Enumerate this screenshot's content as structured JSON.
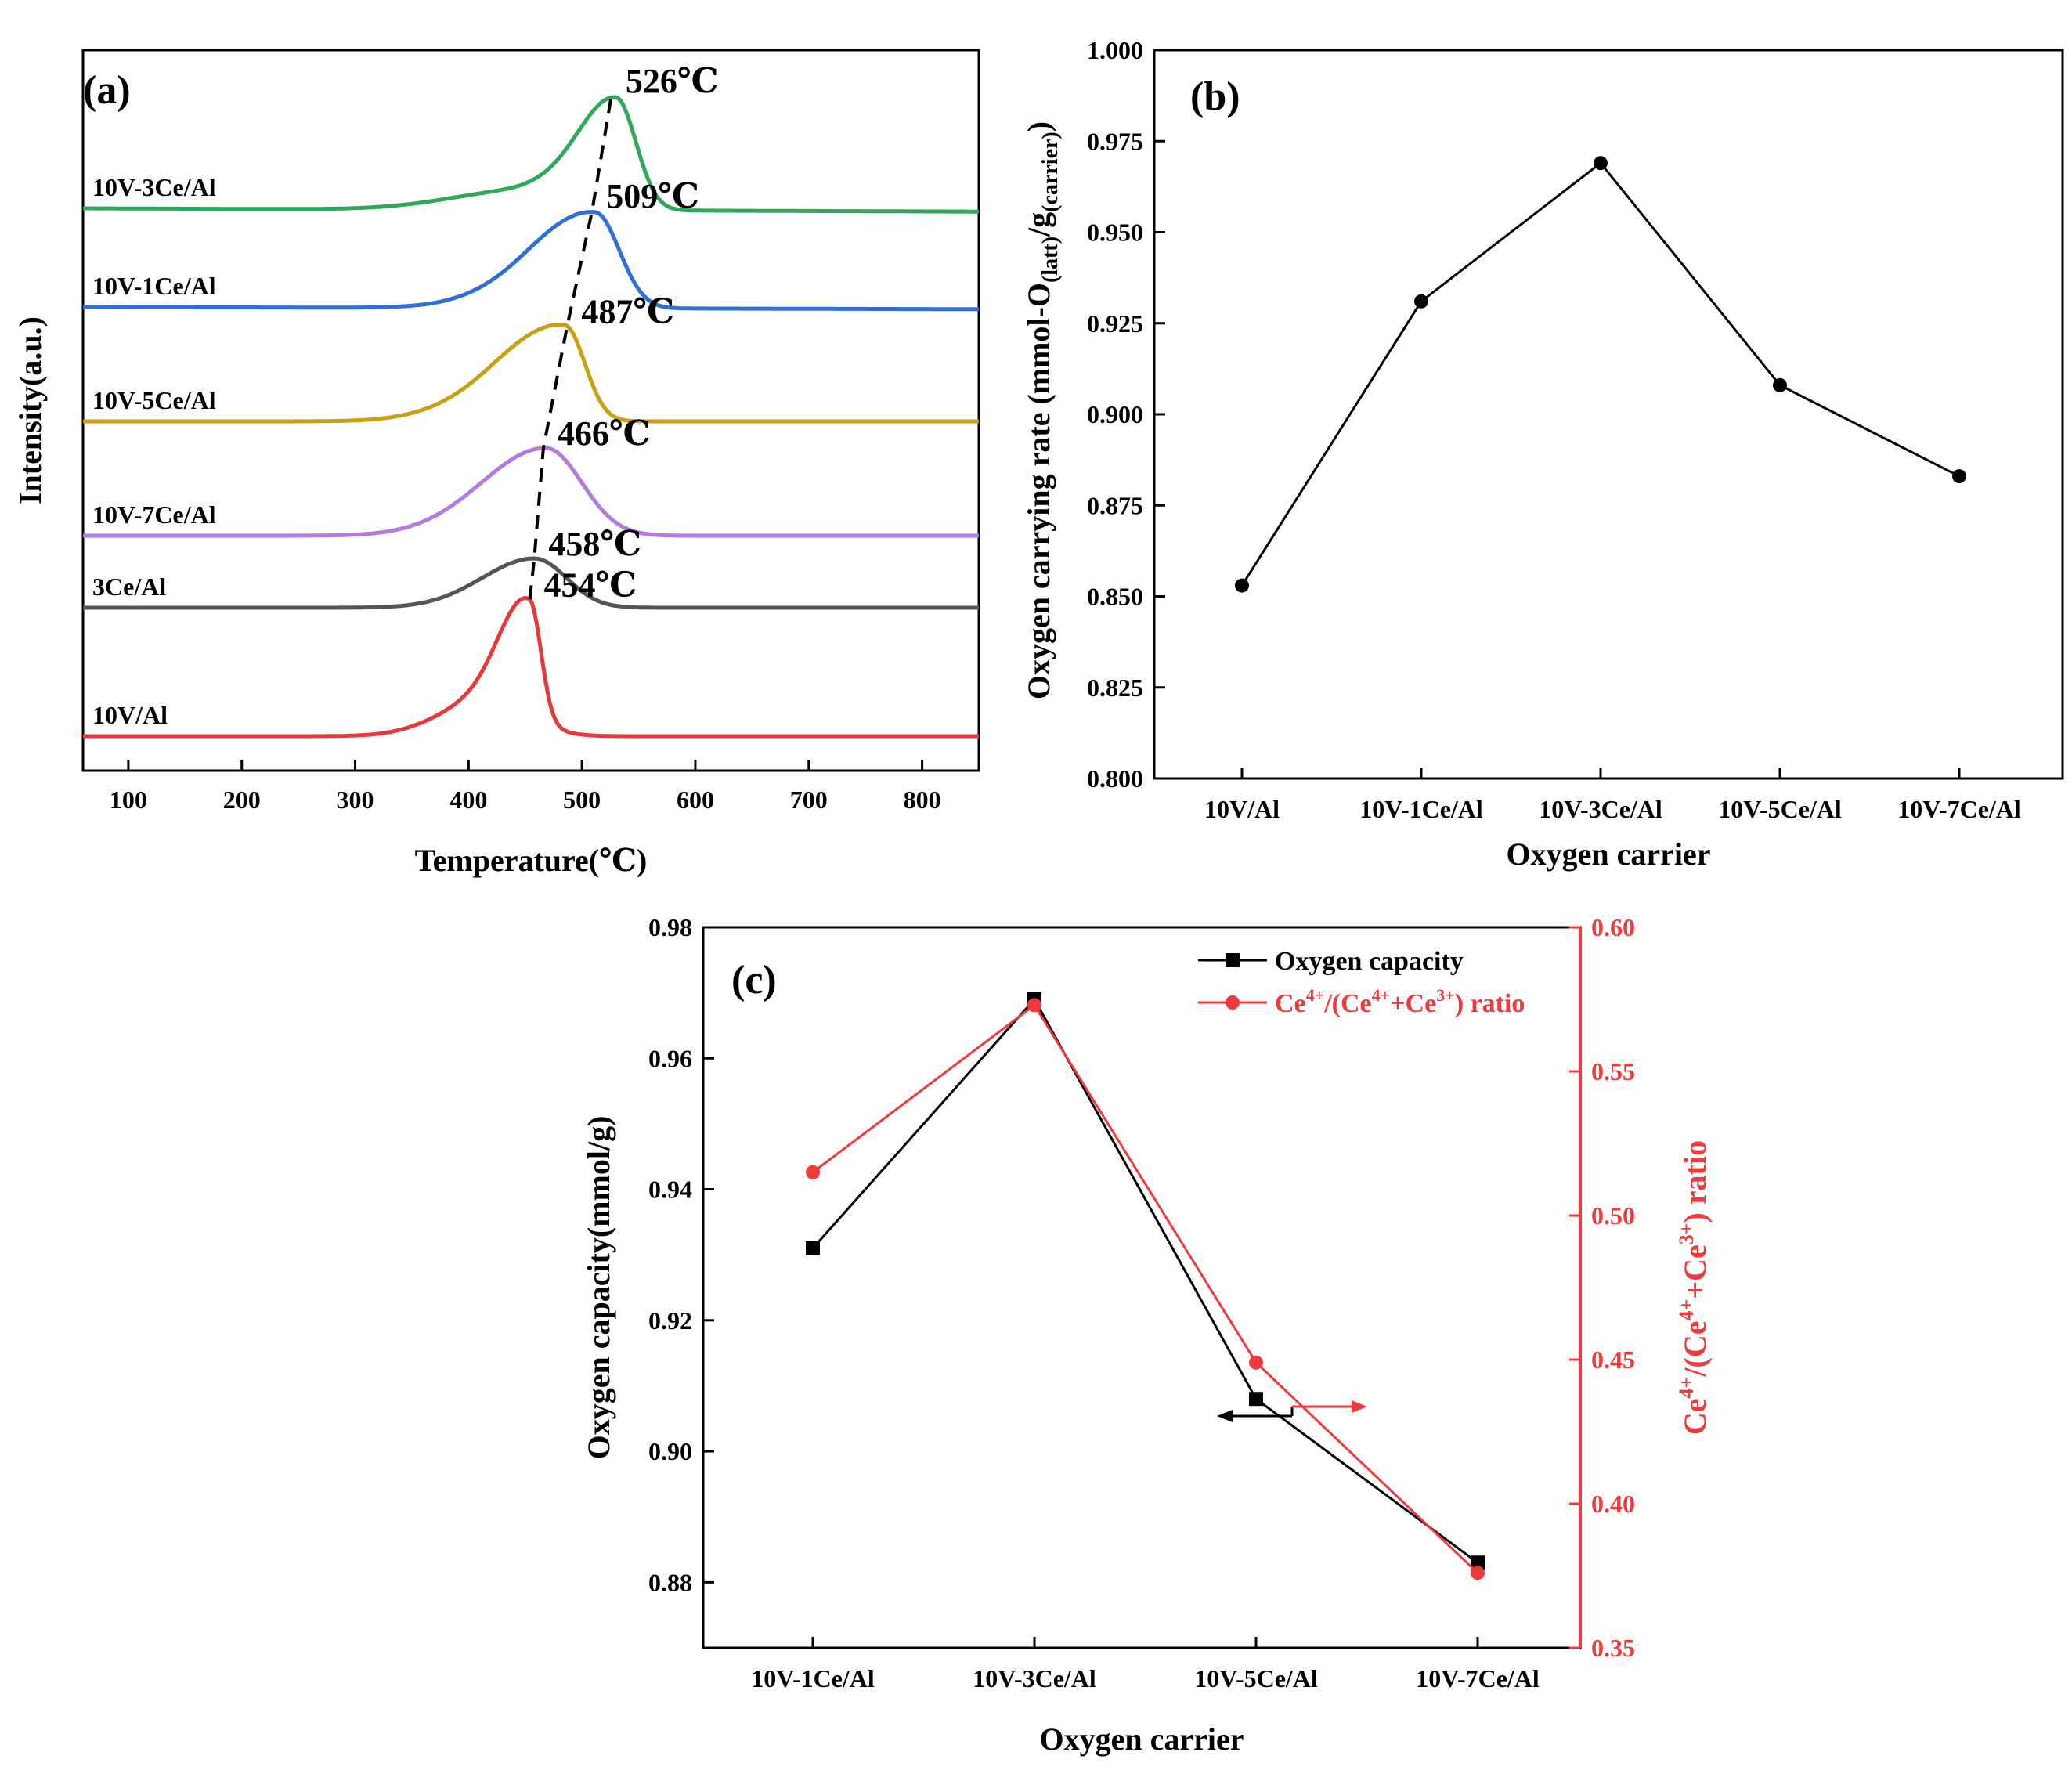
{
  "colors": {
    "axis": "#000000",
    "series_black": "#000000",
    "series_red": "#f0393b",
    "green": "#2fa85a",
    "blue": "#2f6fd6",
    "gold": "#c9a012",
    "purple": "#b57ae0",
    "gray": "#555555",
    "red": "#e5393b"
  },
  "chart_data": [
    {
      "id": "a",
      "type": "line",
      "panel_label": "(a)",
      "xlabel": "Temperature(℃)",
      "ylabel": "Intensity(a.u.)",
      "xlim": [
        60,
        850
      ],
      "xticks": [
        100,
        200,
        300,
        400,
        500,
        600,
        700,
        800
      ],
      "tick_labels": [
        "100",
        "200",
        "300",
        "400",
        "500",
        "600",
        "700",
        "800"
      ],
      "series": [
        {
          "name": "10V-3Ce/Al",
          "color_key": "green",
          "offset": 5,
          "peak_temp": 526,
          "peak_label": "526℃",
          "baseline": 0.03,
          "peaks": [
            {
              "center": 530,
              "height": 1.0,
              "wl": 48,
              "wr": 25
            },
            {
              "center": 450,
              "height": 0.18,
              "wl": 90,
              "wr": 60
            }
          ]
        },
        {
          "name": "10V-1Ce/Al",
          "color_key": "blue",
          "offset": 4,
          "peak_temp": 509,
          "peak_label": "509℃",
          "baseline": 0.02,
          "peaks": [
            {
              "center": 512,
              "height": 0.85,
              "wl": 70,
              "wr": 30
            },
            {
              "center": 450,
              "height": 0.12,
              "wl": 70,
              "wr": 50
            }
          ]
        },
        {
          "name": "10V-5Ce/Al",
          "color_key": "gold",
          "offset": 3,
          "peak_temp": 487,
          "peak_label": "487℃",
          "baseline": 0.0,
          "peaks": [
            {
              "center": 485,
              "height": 0.85,
              "wl": 70,
              "wr": 25
            },
            {
              "center": 420,
              "height": 0.15,
              "wl": 70,
              "wr": 50
            }
          ]
        },
        {
          "name": "10V-7Ce/Al",
          "color_key": "purple",
          "offset": 2,
          "peak_temp": 466,
          "peak_label": "466℃",
          "baseline": 0.0,
          "peaks": [
            {
              "center": 468,
              "height": 0.8,
              "wl": 80,
              "wr": 45
            },
            {
              "center": 760,
              "height": 0.0,
              "wl": 10,
              "wr": 10
            }
          ]
        },
        {
          "name": "3Ce/Al",
          "color_key": "gray",
          "offset": 1,
          "peak_temp": 458,
          "peak_label": "458℃",
          "baseline": 0.0,
          "peaks": [
            {
              "center": 458,
              "height": 0.45,
              "wl": 65,
              "wr": 40
            }
          ]
        },
        {
          "name": "10V/Al",
          "color_key": "red",
          "offset": 0,
          "peak_temp": 454,
          "peak_label": "454℃",
          "baseline": 0.0,
          "peaks": [
            {
              "center": 454,
              "height": 1.05,
              "wl": 35,
              "wr": 14
            },
            {
              "center": 420,
              "height": 0.35,
              "wl": 60,
              "wr": 45
            }
          ]
        }
      ],
      "dashed_trend": "peak maxima connected by dashed line"
    },
    {
      "id": "b",
      "type": "line",
      "panel_label": "(b)",
      "xlabel": "Oxygen carrier",
      "ylabel": "Oxygen carrying rate (mmol-O(latt)/g(carrier))",
      "ylabel_parts": {
        "main": "Oxygen carrying rate (mmol-O",
        "sub1": "(latt)",
        "mid": "/g",
        "sub2": "(carrier)",
        "end": ")"
      },
      "categories": [
        "10V/Al",
        "10V-1Ce/Al",
        "10V-3Ce/Al",
        "10V-5Ce/Al",
        "10V-7Ce/Al"
      ],
      "values": [
        0.853,
        0.931,
        0.969,
        0.908,
        0.883
      ],
      "ylim": [
        0.8,
        1.0
      ],
      "yticks": [
        0.8,
        0.825,
        0.85,
        0.875,
        0.9,
        0.925,
        0.95,
        0.975,
        1.0
      ],
      "ytick_labels": [
        "0.800",
        "0.825",
        "0.850",
        "0.875",
        "0.900",
        "0.925",
        "0.950",
        "0.975",
        "1.000"
      ]
    },
    {
      "id": "c",
      "type": "line",
      "panel_label": "(c)",
      "xlabel": "Oxygen carrier",
      "categories": [
        "10V-1Ce/Al",
        "10V-3Ce/Al",
        "10V-5Ce/Al",
        "10V-7Ce/Al"
      ],
      "series": [
        {
          "name": "Oxygen capacity",
          "axis": "left",
          "marker": "square",
          "color_key": "series_black",
          "values": [
            0.931,
            0.969,
            0.908,
            0.883
          ]
        },
        {
          "name": "Ce4+/(Ce4++Ce3+) ratio",
          "axis": "right",
          "marker": "circle",
          "color_key": "series_red",
          "values": [
            0.515,
            0.573,
            0.449,
            0.376
          ]
        }
      ],
      "left_axis": {
        "label": "Oxygen capacity(mmol/g)",
        "ylim": [
          0.87,
          0.98
        ],
        "yticks": [
          0.88,
          0.9,
          0.92,
          0.94,
          0.96,
          0.98
        ],
        "ytick_labels": [
          "0.88",
          "0.90",
          "0.92",
          "0.94",
          "0.96",
          "0.98"
        ]
      },
      "right_axis": {
        "label": "Ce4+/(Ce4++Ce3+) ratio",
        "ylim": [
          0.35,
          0.6
        ],
        "yticks": [
          0.35,
          0.4,
          0.45,
          0.5,
          0.55,
          0.6
        ],
        "ytick_labels": [
          "0.35",
          "0.40",
          "0.45",
          "0.50",
          "0.55",
          "0.60"
        ]
      },
      "legend": [
        "Oxygen capacity",
        "Ce4+/(Ce4++Ce3+) ratio"
      ],
      "legend_location": "top-right"
    }
  ]
}
